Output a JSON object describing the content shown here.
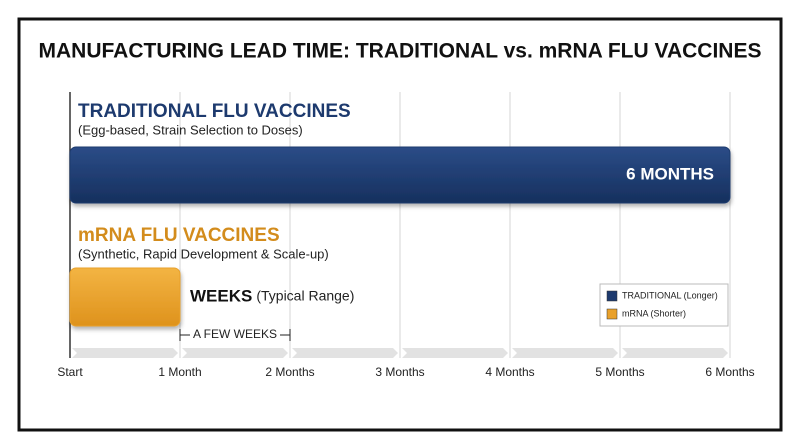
{
  "chart_data": {
    "type": "bar",
    "orientation": "horizontal",
    "title": "MANUFACTURING LEAD TIME: TRADITIONAL vs. mRNA FLU VACCINES",
    "categories": [
      "TRADITIONAL FLU VACCINES",
      "mRNA FLU VACCINES"
    ],
    "category_notes": [
      "(Egg-based, Strain Selection to Doses)",
      "(Synthetic, Rapid Development & Scale-up)"
    ],
    "values": [
      6,
      1
    ],
    "value_labels": [
      "6 MONTHS",
      "WEEKS"
    ],
    "colors": [
      "#1d3a6e",
      "#e9a12b"
    ],
    "xlim": [
      0,
      6
    ],
    "xticks": [
      {
        "value": 0,
        "label": "Start"
      },
      {
        "value": 1,
        "label": "1 Month"
      },
      {
        "value": 2,
        "label": "2 Months"
      },
      {
        "value": 3,
        "label": "3 Months"
      },
      {
        "value": 4,
        "label": "4 Months"
      },
      {
        "value": 5,
        "label": "5 Months"
      },
      {
        "value": 6,
        "label": "6 Months"
      }
    ],
    "grid": true,
    "annotations": [
      {
        "text": "(Typical Range)"
      },
      {
        "text": "A FEW WEEKS",
        "x": [
          1,
          2
        ]
      }
    ],
    "legend": {
      "position": "lower right",
      "entries": [
        "TRADITIONAL (Longer)",
        "mRNA (Shorter)"
      ]
    }
  }
}
